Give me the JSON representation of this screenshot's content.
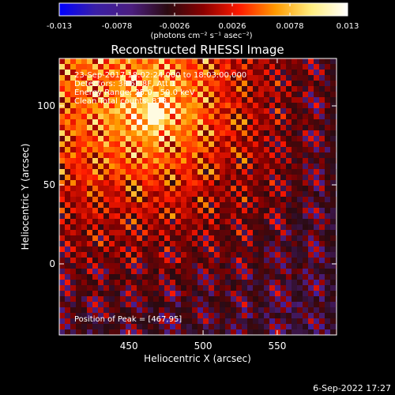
{
  "colorbar": {
    "ticks": [
      "-0.013",
      "-0.0078",
      "-0.0026",
      "0.0026",
      "0.0078",
      "0.013"
    ],
    "tick_values": [
      -0.013,
      -0.0078,
      -0.0026,
      0.0026,
      0.0078,
      0.013
    ],
    "range": [
      -0.013,
      0.013
    ],
    "unit_label": "(photons cm⁻² s⁻¹ asec⁻²)",
    "colors": [
      "#0000ff",
      "#3a1fa6",
      "#4b1e7f",
      "#2a0a10",
      "#8b0000",
      "#ff1a00",
      "#ff9a00",
      "#ffee80",
      "#ffffff"
    ]
  },
  "plot": {
    "title": "Reconstructed RHESSI Image",
    "annotations": [
      "23-Sep-2017 18:02:24.000 to 18:03:00.000",
      "Detectors: 3F 6F 8F, Att 1",
      "Energy Range: 25.0 - 50.0 keV",
      "Clean    Total counts: 878."
    ],
    "peak_label": "Position of Peak = [467,95]",
    "footer": "6-Sep-2022 17:27"
  },
  "chart_data": {
    "type": "heatmap",
    "title": "Reconstructed RHESSI Image",
    "xlabel": "Heliocentric X (arcsec)",
    "ylabel": "Heliocentric Y (arcsec)",
    "xlim": [
      403,
      590
    ],
    "ylim": [
      -45,
      130
    ],
    "xticks": [
      450,
      500,
      550
    ],
    "yticks": [
      0,
      50,
      100
    ],
    "value_range": [
      -0.013,
      0.013
    ],
    "peak": {
      "x": 467,
      "y": 95
    },
    "grid": false
  }
}
